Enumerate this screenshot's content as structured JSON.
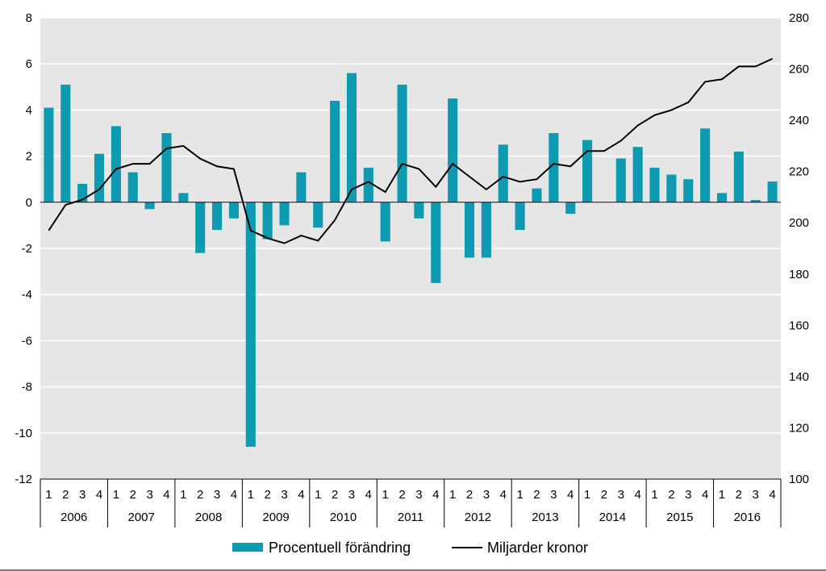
{
  "chart_data": {
    "type": "bar+line",
    "title": "",
    "quarters": [
      "1",
      "2",
      "3",
      "4"
    ],
    "years": [
      "2006",
      "2007",
      "2008",
      "2009",
      "2010",
      "2011",
      "2012",
      "2013",
      "2014",
      "2015",
      "2016"
    ],
    "y_left": {
      "min": -12,
      "max": 8,
      "step": 2,
      "label": ""
    },
    "y_right": {
      "min": 100,
      "max": 280,
      "step": 20,
      "label": ""
    },
    "grid": true,
    "legend_position": "bottom",
    "colors": {
      "bar": "#0E9BB1",
      "line": "#000000",
      "plot_bg": "#E6E6E6",
      "grid": "#FFFFFF"
    },
    "series": [
      {
        "name": "Procentuell förändring",
        "type": "bar",
        "axis": "left",
        "values": [
          4.1,
          5.1,
          0.8,
          2.1,
          3.3,
          1.3,
          -0.3,
          3.0,
          0.4,
          -2.2,
          -1.2,
          -0.7,
          -10.6,
          -1.6,
          -1.0,
          1.3,
          -1.1,
          4.4,
          5.6,
          1.5,
          -1.7,
          5.1,
          -0.7,
          -3.5,
          4.5,
          -2.4,
          -2.4,
          2.5,
          -1.2,
          0.6,
          3.0,
          -0.5,
          2.7,
          0.0,
          1.9,
          2.4,
          1.5,
          1.2,
          1.0,
          3.2,
          0.4,
          2.2,
          0.1,
          0.9
        ]
      },
      {
        "name": "Miljarder kronor",
        "type": "line",
        "axis": "right",
        "values": [
          197,
          207,
          209,
          213,
          221,
          223,
          223,
          229,
          230,
          225,
          222,
          221,
          197,
          194,
          192,
          195,
          193,
          201,
          213,
          216,
          212,
          223,
          221,
          214,
          223,
          218,
          213,
          218,
          216,
          217,
          223,
          222,
          228,
          228,
          232,
          238,
          242,
          244,
          247,
          255,
          256,
          261,
          261,
          264
        ]
      }
    ]
  }
}
